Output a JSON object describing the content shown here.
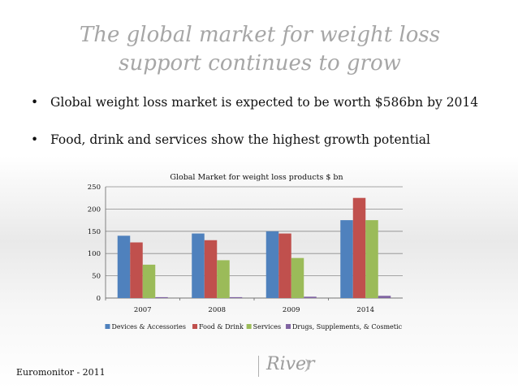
{
  "slide": {
    "title_lines": [
      "The global market for weight loss",
      "support continues to grow"
    ],
    "bullets": [
      "Global weight loss market is expected to be worth $586bn by 2014",
      "Food, drink and services show the highest growth potential"
    ],
    "bullet_marker": "•",
    "source": "Euromonitor - 2011",
    "logo_text": "River"
  },
  "chart_data": {
    "type": "bar",
    "title": "Global Market for weight loss products $ bn",
    "categories": [
      "2007",
      "2008",
      "2009",
      "2014"
    ],
    "ylim": [
      0,
      250
    ],
    "yticks": [
      0,
      50,
      100,
      150,
      200,
      250
    ],
    "grid": true,
    "legend_position": "bottom",
    "series": [
      {
        "name": "Devices & Accessories",
        "color": "#4f81bd",
        "values": [
          140,
          145,
          150,
          175
        ]
      },
      {
        "name": "Food & Drink",
        "color": "#c0504d",
        "values": [
          125,
          130,
          145,
          225
        ]
      },
      {
        "name": "Services",
        "color": "#9bbb59",
        "values": [
          75,
          85,
          90,
          175
        ]
      },
      {
        "name": "Drugs, Supplements, & Cosmetic",
        "color": "#8064a2",
        "values": [
          2,
          2,
          3,
          5
        ]
      }
    ]
  }
}
